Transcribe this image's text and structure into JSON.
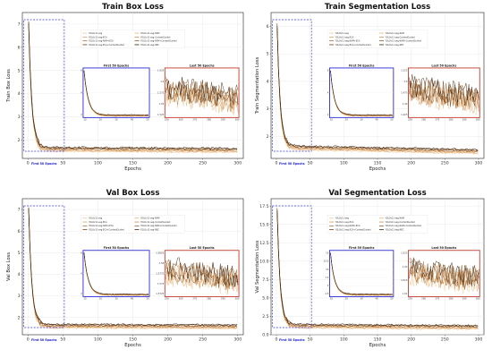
{
  "legend_entries": [
    "YOLOv11-seg",
    "YOLOv11-seg-NAM",
    "YOLOv11-seg-ECA",
    "YOLOv11-seg-ContextGuided",
    "YOLOv11-seg-NAM+ECA",
    "YOLOv11-seg-NAM+ContextGuided",
    "YOLOv11-seg-ECA+ContextGuided",
    "YOLOv11-seg-NEC"
  ],
  "series_colors": [
    "#f2c99a",
    "#e8b37a",
    "#d9a060",
    "#c98a4a",
    "#a86e34",
    "#8a5624",
    "#6b3f18",
    "#3a200a"
  ],
  "inset_left_title": "First 50 Epochs",
  "inset_right_title": "Last 50 Epochs",
  "zoom_annotation": "First 50 Epochs",
  "chart_data": [
    {
      "type": "line",
      "title": "Train Box Loss",
      "xlabel": "Epochs",
      "ylabel": "Train Box Loss",
      "xlim": [
        -8,
        308
      ],
      "ylim": [
        1.2,
        7.5
      ],
      "xticks": [
        0,
        50,
        100,
        150,
        200,
        250,
        300
      ],
      "yticks": [
        2,
        3,
        4,
        5,
        6,
        7
      ],
      "start": 7.0,
      "floor": 1.6,
      "end": 1.55,
      "inset_left_yticks": [
        2,
        4,
        6
      ],
      "inset_left_xticks": [
        10,
        20,
        30,
        40,
        50
      ],
      "inset_right_yticks": [
        1.525,
        1.55,
        1.575,
        1.6,
        1.625
      ],
      "inset_right_ylim": [
        1.5,
        1.65
      ],
      "inset_right_xticks": [
        250,
        260,
        270,
        280,
        290,
        300
      ],
      "grid": true
    },
    {
      "type": "line",
      "title": "Train Segmentation Loss",
      "xlabel": "Epochs",
      "ylabel": "Train Segmentation Loss",
      "xlim": [
        -8,
        308
      ],
      "ylim": [
        1.2,
        6.5
      ],
      "xticks": [
        0,
        50,
        100,
        150,
        200,
        250,
        300
      ],
      "yticks": [
        2,
        3,
        4,
        5,
        6
      ],
      "start": 6.0,
      "floor": 1.6,
      "end": 1.45,
      "inset_left_yticks": [
        2,
        4,
        6
      ],
      "inset_left_xticks": [
        10,
        20,
        30,
        40,
        50
      ],
      "inset_right_yticks": [
        1.425,
        1.45,
        1.475,
        1.5,
        1.525
      ],
      "inset_right_ylim": [
        1.4,
        1.55
      ],
      "inset_right_xticks": [
        250,
        260,
        270,
        280,
        290,
        300
      ],
      "grid": true
    },
    {
      "type": "line",
      "title": "Val Box Loss",
      "xlabel": "Epochs",
      "ylabel": "Val Box Loss",
      "xlim": [
        -8,
        308
      ],
      "ylim": [
        1.2,
        7.5
      ],
      "xticks": [
        0,
        50,
        100,
        150,
        200,
        250,
        300
      ],
      "yticks": [
        2,
        3,
        4,
        5,
        6,
        7
      ],
      "start": 7.0,
      "floor": 1.6,
      "end": 1.57,
      "inset_left_yticks": [
        2,
        4,
        6
      ],
      "inset_left_xticks": [
        10,
        20,
        30,
        40,
        50
      ],
      "inset_right_yticks": [
        1.5725,
        1.575,
        1.5775,
        1.58,
        1.5825
      ],
      "inset_right_ylim": [
        1.57,
        1.585
      ],
      "inset_right_xticks": [
        250,
        260,
        270,
        280,
        290,
        300
      ],
      "grid": true
    },
    {
      "type": "line",
      "title": "Val Segmentation Loss",
      "xlabel": "Epochs",
      "ylabel": "Val Segmentation Loss",
      "xlim": [
        -8,
        308
      ],
      "ylim": [
        0,
        18.5
      ],
      "xticks": [
        0,
        50,
        100,
        150,
        200,
        250,
        300
      ],
      "yticks": [
        0.0,
        2.5,
        5.0,
        7.5,
        10.0,
        12.5,
        15.0,
        17.5
      ],
      "start": 17.0,
      "floor": 1.2,
      "end": 1.0,
      "inset_left_yticks": [
        2.5,
        5.0,
        7.5,
        10,
        12.5,
        15
      ],
      "inset_left_xticks": [
        10,
        20,
        30,
        40,
        50
      ],
      "inset_right_yticks": [
        1.01,
        1.015,
        1.02,
        1.025
      ],
      "inset_right_ylim": [
        1.005,
        1.03
      ],
      "inset_right_xticks": [
        250,
        260,
        270,
        280,
        290,
        300
      ],
      "grid": true
    }
  ]
}
